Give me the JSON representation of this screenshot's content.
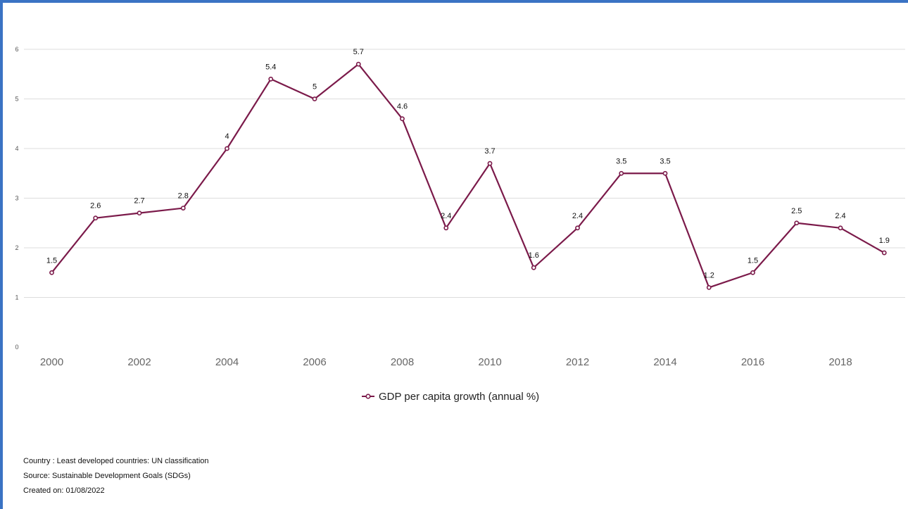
{
  "chart_data": {
    "type": "line",
    "x": [
      2000,
      2001,
      2002,
      2003,
      2004,
      2005,
      2006,
      2007,
      2008,
      2009,
      2010,
      2011,
      2012,
      2013,
      2014,
      2015,
      2016,
      2017,
      2018,
      2019
    ],
    "series": [
      {
        "name": "GDP per capita growth (annual %)",
        "values": [
          1.5,
          2.6,
          2.7,
          2.8,
          4,
          5.4,
          5,
          5.7,
          4.6,
          2.4,
          3.7,
          1.6,
          2.4,
          3.5,
          3.5,
          1.2,
          1.5,
          2.5,
          2.4,
          1.9
        ],
        "color": "#7b1a4a"
      }
    ],
    "x_tick_labels": [
      "2000",
      "2002",
      "2004",
      "2006",
      "2008",
      "2010",
      "2012",
      "2014",
      "2016",
      "2018"
    ],
    "y_tick_labels": [
      "0",
      "1",
      "2",
      "3",
      "4",
      "5",
      "6"
    ],
    "ylim": [
      0,
      6
    ],
    "grid": true,
    "legend": "bottom-center"
  },
  "footer": {
    "country": "Country : Least developed countries: UN classification",
    "source": "Source: Sustainable Development Goals (SDGs)",
    "created": "Created on: 01/08/2022"
  },
  "colors": {
    "frame": "#3a73c4",
    "grid": "#dddddd",
    "series": "#7b1a4a"
  }
}
